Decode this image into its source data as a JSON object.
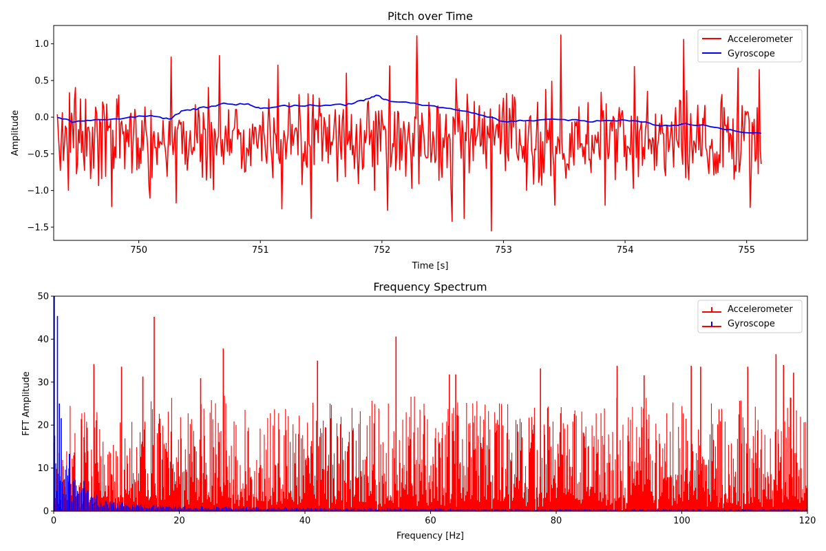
{
  "chart_data": [
    {
      "type": "line",
      "title": "Pitch over Time",
      "xlabel": "Time [s]",
      "ylabel": "Amplitude",
      "xlim": [
        749.3,
        755.5
      ],
      "ylim": [
        -1.68,
        1.25
      ],
      "xticks": [
        750,
        751,
        752,
        753,
        754,
        755
      ],
      "yticks": [
        -1.5,
        -1.0,
        -0.5,
        0.0,
        0.5,
        1.0
      ],
      "ytick_labels": [
        "−1.5",
        "−1.0",
        "−0.5",
        "0.0",
        "0.5",
        "1.0"
      ],
      "legend_position": "top-right",
      "x_range": [
        749.33,
        755.12
      ],
      "series": [
        {
          "name": "Accelerometer",
          "color": "#ff0000",
          "spikes": [
            {
              "x": 749.52,
              "y": 0.25
            },
            {
              "x": 749.78,
              "y": -1.22
            },
            {
              "x": 750.27,
              "y": 0.82
            },
            {
              "x": 750.31,
              "y": -1.17
            },
            {
              "x": 750.66,
              "y": 0.84
            },
            {
              "x": 751.14,
              "y": 0.71
            },
            {
              "x": 751.18,
              "y": -1.25
            },
            {
              "x": 751.42,
              "y": -1.38
            },
            {
              "x": 751.71,
              "y": 0.6
            },
            {
              "x": 752.05,
              "y": -1.27
            },
            {
              "x": 752.06,
              "y": 0.7
            },
            {
              "x": 752.29,
              "y": 1.11
            },
            {
              "x": 752.58,
              "y": -1.42
            },
            {
              "x": 752.68,
              "y": -1.38
            },
            {
              "x": 752.9,
              "y": -1.55
            },
            {
              "x": 753.47,
              "y": 1.12
            },
            {
              "x": 753.42,
              "y": -1.2
            },
            {
              "x": 753.84,
              "y": -1.2
            },
            {
              "x": 754.08,
              "y": 0.69
            },
            {
              "x": 754.48,
              "y": 1.06
            },
            {
              "x": 754.93,
              "y": 0.67
            },
            {
              "x": 755.03,
              "y": -1.23
            },
            {
              "x": 755.1,
              "y": 0.65
            }
          ]
        },
        {
          "name": "Gyroscope",
          "color": "#0000ff",
          "points": [
            [
              749.33,
              0.0
            ],
            [
              749.45,
              -0.06
            ],
            [
              749.6,
              -0.05
            ],
            [
              749.9,
              -0.01
            ],
            [
              750.1,
              0.03
            ],
            [
              750.25,
              -0.03
            ],
            [
              750.35,
              0.08
            ],
            [
              750.5,
              0.12
            ],
            [
              750.7,
              0.18
            ],
            [
              750.9,
              0.17
            ],
            [
              751.0,
              0.12
            ],
            [
              751.2,
              0.15
            ],
            [
              751.45,
              0.16
            ],
            [
              751.7,
              0.17
            ],
            [
              751.85,
              0.23
            ],
            [
              751.95,
              0.3
            ],
            [
              752.05,
              0.22
            ],
            [
              752.2,
              0.21
            ],
            [
              752.4,
              0.15
            ],
            [
              752.6,
              0.1
            ],
            [
              752.8,
              0.04
            ],
            [
              753.0,
              -0.06
            ],
            [
              753.2,
              -0.05
            ],
            [
              753.5,
              -0.03
            ],
            [
              753.7,
              -0.06
            ],
            [
              753.9,
              -0.04
            ],
            [
              754.1,
              -0.05
            ],
            [
              754.3,
              -0.12
            ],
            [
              754.5,
              -0.09
            ],
            [
              754.7,
              -0.13
            ],
            [
              754.9,
              -0.19
            ],
            [
              755.12,
              -0.22
            ]
          ]
        }
      ]
    },
    {
      "type": "bar",
      "title": "Frequency Spectrum",
      "xlabel": "Frequency [Hz]",
      "ylabel": "FFT Amplitude",
      "xlim": [
        0,
        120
      ],
      "ylim": [
        0,
        50
      ],
      "xticks": [
        0,
        20,
        40,
        60,
        80,
        100,
        120
      ],
      "yticks": [
        0,
        10,
        20,
        30,
        40,
        50
      ],
      "legend_position": "top-right",
      "series": [
        {
          "name": "Accelerometer",
          "color": "#ff0000",
          "peaks": [
            {
              "x": 16.0,
              "y": 45.2
            },
            {
              "x": 27.0,
              "y": 37.8
            },
            {
              "x": 42.0,
              "y": 35.0
            },
            {
              "x": 54.5,
              "y": 40.6
            },
            {
              "x": 10.8,
              "y": 33.6
            },
            {
              "x": 6.4,
              "y": 34.2
            },
            {
              "x": 14.2,
              "y": 31.3
            },
            {
              "x": 23.4,
              "y": 30.9
            },
            {
              "x": 63.0,
              "y": 31.8
            },
            {
              "x": 64.0,
              "y": 31.8
            },
            {
              "x": 77.5,
              "y": 33.2
            },
            {
              "x": 89.7,
              "y": 33.8
            },
            {
              "x": 94.0,
              "y": 31.6
            },
            {
              "x": 101.5,
              "y": 33.8
            },
            {
              "x": 103.0,
              "y": 33.6
            },
            {
              "x": 110.5,
              "y": 33.6
            },
            {
              "x": 115.0,
              "y": 36.5
            },
            {
              "x": 116.2,
              "y": 34.0
            },
            {
              "x": 117.8,
              "y": 32.2
            }
          ],
          "noise_floor": 8
        },
        {
          "name": "Gyroscope",
          "color": "#0000ff",
          "peaks": [
            {
              "x": 0.1,
              "y": 50.0
            },
            {
              "x": 0.6,
              "y": 45.4
            },
            {
              "x": 0.9,
              "y": 25.0
            },
            {
              "x": 1.2,
              "y": 21.6
            },
            {
              "x": 2.5,
              "y": 13.3
            },
            {
              "x": 4.8,
              "y": 7.0
            }
          ],
          "decay": "exponential"
        }
      ]
    }
  ]
}
